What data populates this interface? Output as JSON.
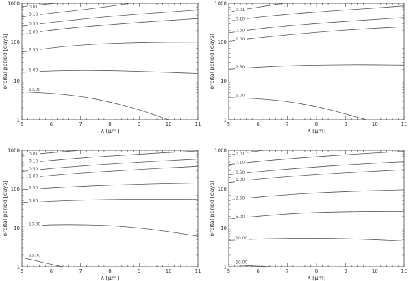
{
  "chart_data": [
    {
      "type": "line",
      "xlabel": "λ [μm]",
      "ylabel": "orbital period [days]",
      "xlim": [
        5,
        11
      ],
      "ylim": [
        1,
        1000
      ],
      "yscale": "log",
      "xticks": [
        "5",
        "6",
        "7",
        "8",
        "9",
        "10",
        "11"
      ],
      "yticks": [
        "1",
        "10",
        "100",
        "1000"
      ],
      "series": [
        {
          "label": "0.01",
          "x": [
            5,
            5.6,
            6.2
          ],
          "y": [
            820,
            920,
            1000
          ]
        },
        {
          "label": "0.10",
          "x": [
            5,
            6,
            7,
            8,
            8.7
          ],
          "y": [
            450,
            560,
            680,
            840,
            1000
          ]
        },
        {
          "label": "0.50",
          "x": [
            5,
            6,
            7,
            8,
            9,
            10,
            11
          ],
          "y": [
            260,
            325,
            390,
            460,
            530,
            600,
            680
          ]
        },
        {
          "label": "1.00",
          "x": [
            5,
            6,
            7,
            8,
            9,
            10,
            11
          ],
          "y": [
            160,
            205,
            245,
            285,
            325,
            365,
            405
          ]
        },
        {
          "label": "2.50",
          "x": [
            5,
            6,
            7,
            8,
            9,
            10,
            11
          ],
          "y": [
            56,
            72,
            84,
            92,
            97,
            99,
            100
          ]
        },
        {
          "label": "5.00",
          "x": [
            5,
            6,
            7,
            8,
            9,
            10,
            11
          ],
          "y": [
            16.5,
            18,
            18.5,
            18.3,
            17.5,
            16.5,
            15.5
          ]
        },
        {
          "label": "10.00",
          "x": [
            5,
            6,
            7,
            8,
            9,
            10
          ],
          "y": [
            5.2,
            4.8,
            4.0,
            2.9,
            1.8,
            1.0
          ]
        }
      ]
    },
    {
      "type": "line",
      "xlabel": "λ [μm]",
      "ylabel": "orbital period [days]",
      "xlim": [
        5,
        11
      ],
      "ylim": [
        1,
        1000
      ],
      "yscale": "log",
      "xticks": [
        "5",
        "6",
        "7",
        "8",
        "9",
        "10",
        "11"
      ],
      "yticks": [
        "1",
        "10",
        "100",
        "1000"
      ],
      "series": [
        {
          "label": "0.01",
          "x": [
            5,
            6,
            6.9
          ],
          "y": [
            600,
            800,
            1000
          ]
        },
        {
          "label": "0.10",
          "x": [
            5,
            6,
            7,
            8,
            9,
            10,
            11
          ],
          "y": [
            350,
            440,
            520,
            600,
            680,
            760,
            860
          ]
        },
        {
          "label": "0.50",
          "x": [
            5,
            6,
            7,
            8,
            9,
            10,
            11
          ],
          "y": [
            175,
            220,
            265,
            305,
            345,
            385,
            430
          ]
        },
        {
          "label": "1.00",
          "x": [
            5,
            6,
            7,
            8,
            9,
            10,
            11
          ],
          "y": [
            105,
            130,
            155,
            180,
            205,
            228,
            250
          ]
        },
        {
          "label": "2.50",
          "x": [
            5,
            6,
            7,
            8,
            9,
            10,
            11
          ],
          "y": [
            20,
            22.5,
            24.5,
            25.5,
            26,
            26,
            25.5
          ]
        },
        {
          "label": "5.00",
          "x": [
            5,
            6,
            7,
            8,
            9,
            9.7
          ],
          "y": [
            3.7,
            3.5,
            3.0,
            2.2,
            1.4,
            1.0
          ]
        }
      ]
    },
    {
      "type": "line",
      "xlabel": "λ [μm]",
      "ylabel": "orbital period [days]",
      "xlim": [
        5,
        11
      ],
      "ylim": [
        1,
        1000
      ],
      "yscale": "log",
      "xticks": [
        "5",
        "6",
        "7",
        "8",
        "9",
        "10",
        "11"
      ],
      "yticks": [
        "1",
        "10",
        "100",
        "1000"
      ],
      "series": [
        {
          "label": "0.01",
          "x": [
            5,
            6,
            7
          ],
          "y": [
            750,
            870,
            1000
          ]
        },
        {
          "label": "0.10",
          "x": [
            5,
            6,
            7,
            8,
            9,
            10,
            11
          ],
          "y": [
            460,
            550,
            640,
            720,
            800,
            880,
            960
          ]
        },
        {
          "label": "0.50",
          "x": [
            5,
            6,
            7,
            8,
            9,
            10,
            11
          ],
          "y": [
            290,
            345,
            395,
            445,
            495,
            545,
            600
          ]
        },
        {
          "label": "1.00",
          "x": [
            5,
            6,
            7,
            8,
            9,
            10,
            11
          ],
          "y": [
            190,
            225,
            260,
            292,
            325,
            357,
            390
          ]
        },
        {
          "label": "2.50",
          "x": [
            5,
            6,
            7,
            8,
            9,
            10,
            11
          ],
          "y": [
            95,
            108,
            118,
            127,
            134,
            140,
            145
          ]
        },
        {
          "label": "5.00",
          "x": [
            5,
            6,
            7,
            8,
            9,
            10,
            11
          ],
          "y": [
            44,
            49,
            52,
            54,
            55,
            55,
            54
          ]
        },
        {
          "label": "10.00",
          "x": [
            5,
            6,
            7,
            8,
            9,
            10,
            11
          ],
          "y": [
            11,
            12,
            12,
            11.5,
            10,
            8,
            6.2
          ]
        },
        {
          "label": "25.00",
          "x": [
            5,
            5.5,
            6,
            6.4
          ],
          "y": [
            1.7,
            1.4,
            1.15,
            1.0
          ]
        }
      ]
    },
    {
      "type": "line",
      "xlabel": "λ [μm]",
      "ylabel": "orbital period [days]",
      "xlim": [
        5,
        11
      ],
      "ylim": [
        1,
        1000
      ],
      "yscale": "log",
      "xticks": [
        "5",
        "6",
        "7",
        "8",
        "9",
        "10",
        "11"
      ],
      "yticks": [
        "1",
        "10",
        "100",
        "1000"
      ],
      "series": [
        {
          "label": "0.01",
          "x": [
            5,
            5.6,
            6.2
          ],
          "y": [
            760,
            880,
            1000
          ]
        },
        {
          "label": "0.10",
          "x": [
            5,
            6,
            7,
            8,
            9,
            10,
            11
          ],
          "y": [
            430,
            520,
            605,
            690,
            775,
            860,
            940
          ]
        },
        {
          "label": "0.50",
          "x": [
            5,
            6,
            7,
            8,
            9,
            10,
            11
          ],
          "y": [
            235,
            285,
            330,
            375,
            420,
            465,
            510
          ]
        },
        {
          "label": "1.00",
          "x": [
            5,
            6,
            7,
            8,
            9,
            10,
            11
          ],
          "y": [
            150,
            180,
            210,
            238,
            265,
            292,
            320
          ]
        },
        {
          "label": "2.50",
          "x": [
            5,
            6,
            7,
            8,
            9,
            10,
            11
          ],
          "y": [
            52,
            63,
            72,
            80,
            86,
            91,
            95
          ]
        },
        {
          "label": "5.00",
          "x": [
            5,
            6,
            7,
            8,
            9,
            10,
            11
          ],
          "y": [
            17,
            20,
            23,
            25,
            26,
            26.5,
            26.5
          ]
        },
        {
          "label": "10.00",
          "x": [
            5,
            6,
            7,
            8,
            9,
            10,
            11
          ],
          "y": [
            4.8,
            5.2,
            5.4,
            5.4,
            5.3,
            5.0,
            4.6
          ]
        },
        {
          "label": "10.00",
          "x": [
            5,
            5.5,
            6,
            6.5
          ],
          "y": [
            1.12,
            1.08,
            1.04,
            1.0
          ]
        }
      ]
    }
  ]
}
